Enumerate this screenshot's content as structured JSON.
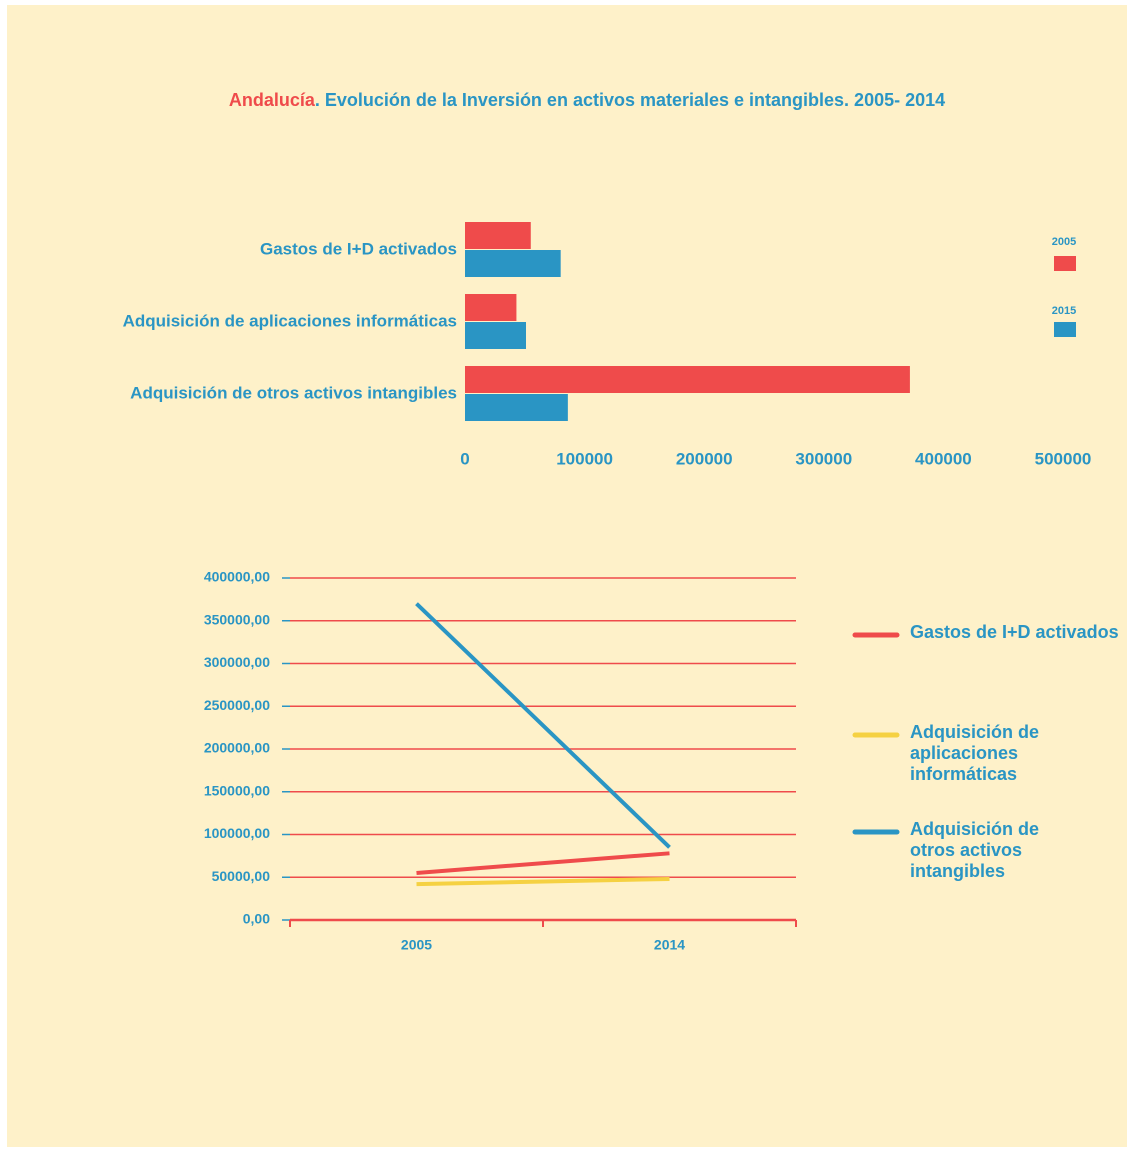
{
  "title": {
    "highlight": "Andalucía",
    "text": ". Evolución de la Inversión en activos materiales e intangibles. 2005- 2014"
  },
  "chart_data": [
    {
      "type": "hbar",
      "categories": [
        "Gastos de I+D activados",
        "Adquisición de aplicaciones informáticas",
        "Adquisición de otros activos intangibles"
      ],
      "series": [
        {
          "name": "2005",
          "color": "#ef4b4b",
          "values": [
            55000,
            43000,
            372000
          ]
        },
        {
          "name": "2015",
          "color": "#2a95c4",
          "values": [
            80000,
            51000,
            86000
          ]
        }
      ],
      "xlim": [
        0,
        500000
      ],
      "xticks": [
        0,
        100000,
        200000,
        300000,
        400000,
        500000
      ]
    },
    {
      "type": "line",
      "categories": [
        "2005",
        "2014"
      ],
      "series": [
        {
          "name": "Gastos de I+D activados",
          "color": "#ef4b4b",
          "values": [
            55000,
            78000
          ]
        },
        {
          "name": "Adquisición de aplicaciones informáticas",
          "color": "#f5d142",
          "values": [
            42000,
            48000
          ]
        },
        {
          "name": "Adquisición de otros activos intangibles",
          "color": "#2a95c4",
          "values": [
            370000,
            85000
          ]
        }
      ],
      "ylim": [
        0,
        400000
      ],
      "yticks": [
        {
          "value": 0,
          "label": "0,00"
        },
        {
          "value": 50000,
          "label": "50000,00"
        },
        {
          "value": 100000,
          "label": "100000,00"
        },
        {
          "value": 150000,
          "label": "150000,00"
        },
        {
          "value": 200000,
          "label": "200000,00"
        },
        {
          "value": 250000,
          "label": "250000,00"
        },
        {
          "value": 300000,
          "label": "300000,00"
        },
        {
          "value": 350000,
          "label": "350000,00"
        },
        {
          "value": 400000,
          "label": "400000,00"
        }
      ],
      "grid": true,
      "grid_color": "#ef4b4b"
    }
  ]
}
